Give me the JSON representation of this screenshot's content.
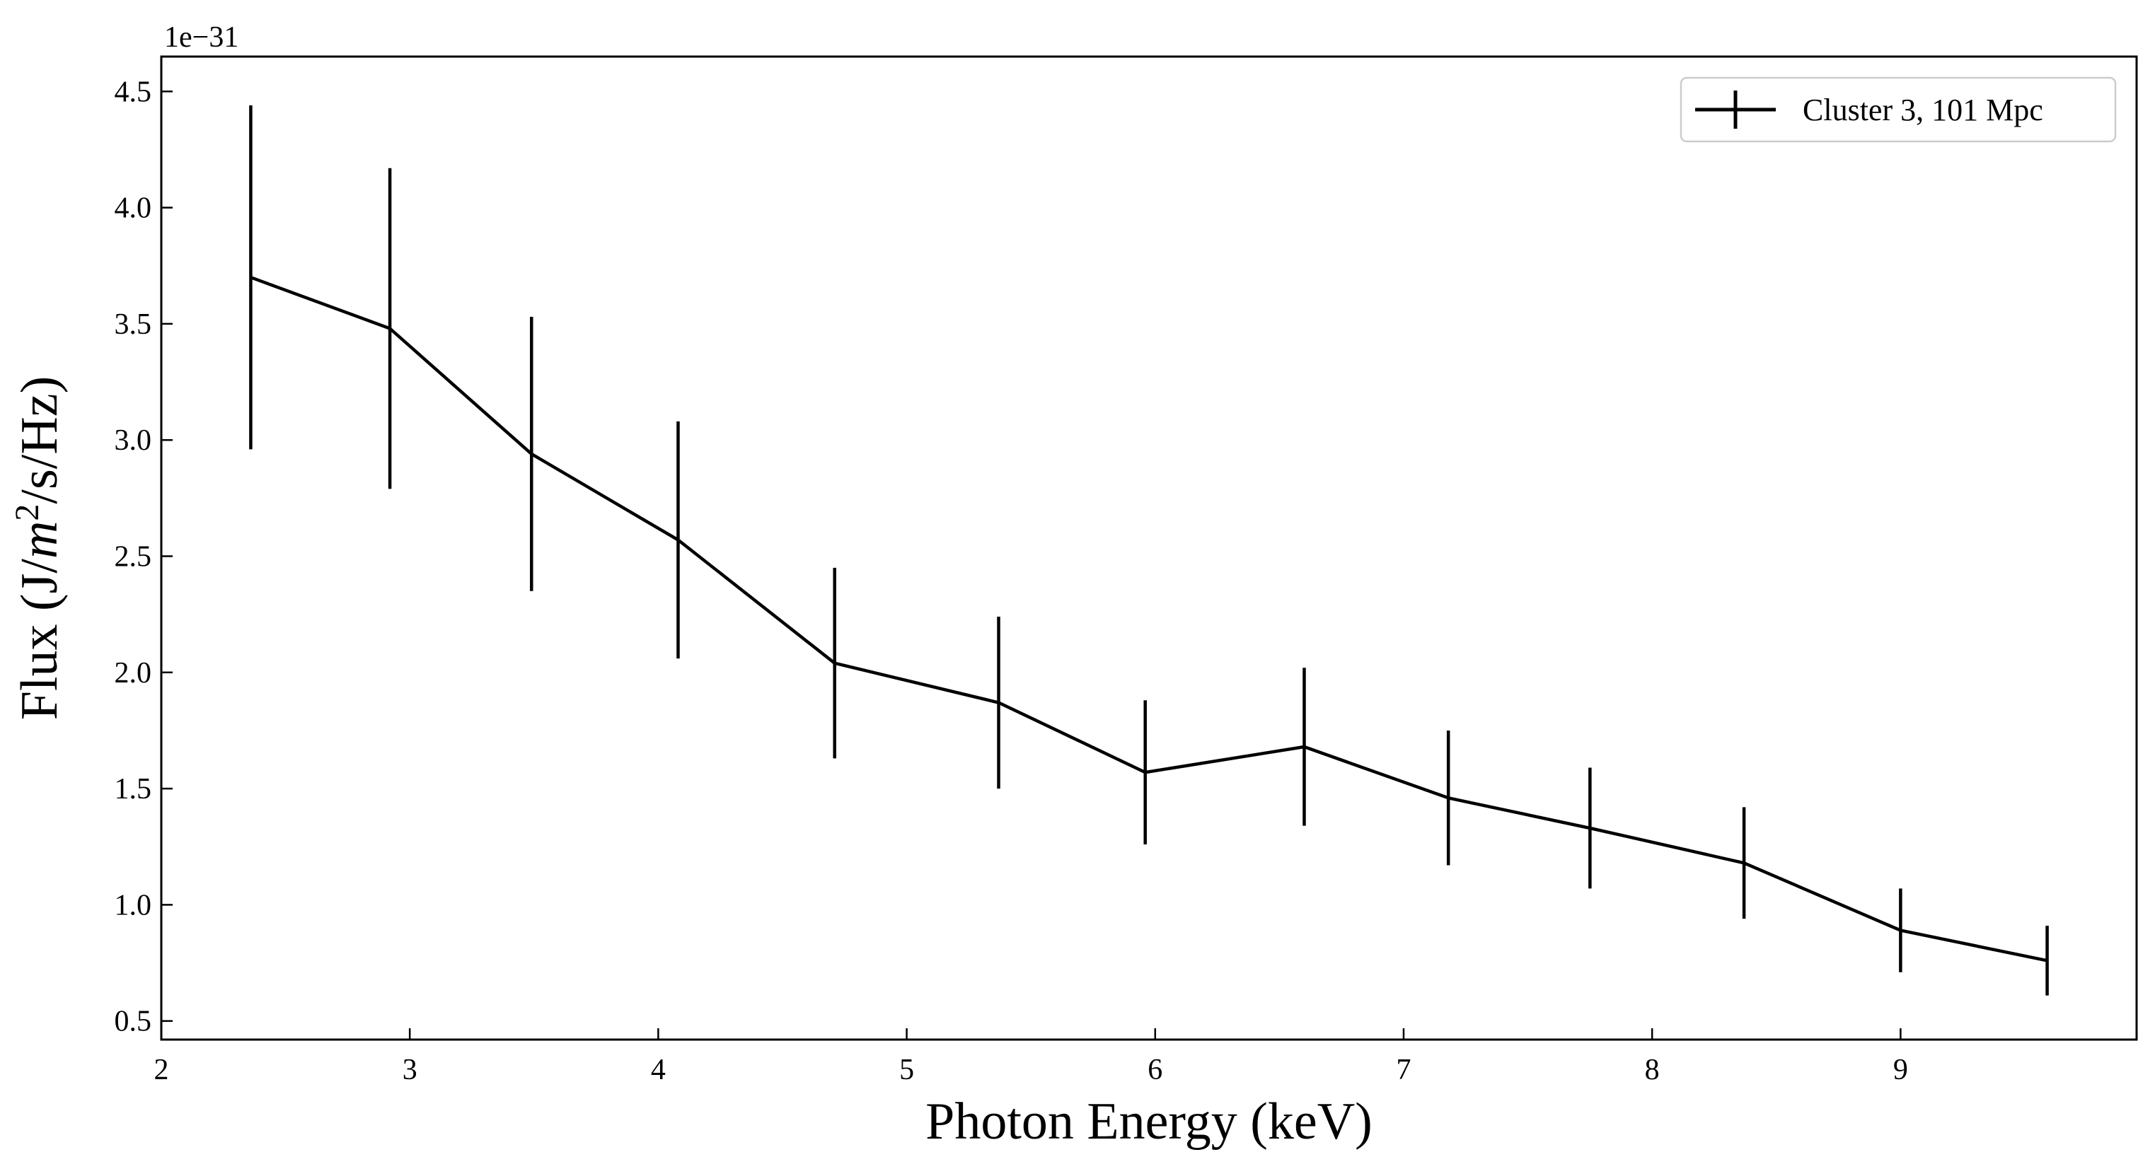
{
  "chart_data": {
    "type": "line",
    "title": "",
    "xlabel": "Photon Energy (keV)",
    "ylabel_parts": {
      "prefix": "Flux (J/",
      "italic": "m",
      "sup": "2",
      "suffix": "/s/Hz)"
    },
    "y_offset_label": "1e−31",
    "xlim": [
      2.0,
      9.95
    ],
    "ylim": [
      0.42,
      4.65
    ],
    "x_ticks": [
      2,
      3,
      4,
      5,
      6,
      7,
      8,
      9
    ],
    "x_tick_labels": [
      "2",
      "3",
      "4",
      "5",
      "6",
      "7",
      "8",
      "9"
    ],
    "y_ticks": [
      0.5,
      1.0,
      1.5,
      2.0,
      2.5,
      3.0,
      3.5,
      4.0,
      4.5
    ],
    "y_tick_labels": [
      "0.5",
      "1.0",
      "1.5",
      "2.0",
      "2.5",
      "3.0",
      "3.5",
      "4.0",
      "4.5"
    ],
    "grid": false,
    "legend_position": "top-right",
    "series": [
      {
        "name": "Cluster 3, 101 Mpc",
        "color": "#000000",
        "x": [
          2.36,
          2.92,
          3.49,
          4.08,
          4.71,
          5.37,
          5.96,
          6.6,
          7.18,
          7.75,
          8.37,
          9.0,
          9.59
        ],
        "y": [
          3.7,
          3.48,
          2.94,
          2.57,
          2.04,
          1.87,
          1.57,
          1.68,
          1.46,
          1.33,
          1.18,
          0.89,
          0.76
        ],
        "yerr": [
          0.74,
          0.69,
          0.59,
          0.51,
          0.41,
          0.37,
          0.31,
          0.34,
          0.29,
          0.26,
          0.24,
          0.18,
          0.15
        ]
      }
    ]
  }
}
